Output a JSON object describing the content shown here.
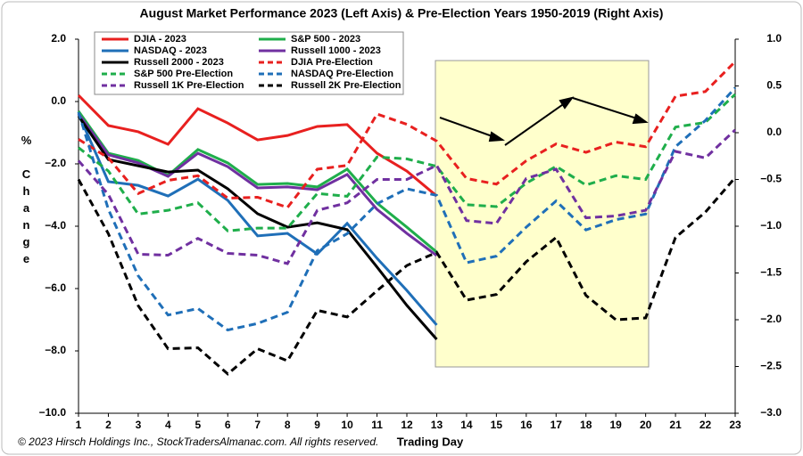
{
  "chart_data": {
    "type": "line",
    "title": "August Market Performance 2023 (Left Axis) & Pre-Election Years 1950-2019 (Right Axis)",
    "xlabel": "Trading Day",
    "ylabel": "% Change",
    "footnote": "© 2023 Hirsch Holdings Inc., StockTradersAlmanac.com. All rights reserved.",
    "x": [
      1,
      2,
      3,
      4,
      5,
      6,
      7,
      8,
      9,
      10,
      11,
      12,
      13,
      14,
      15,
      16,
      17,
      18,
      19,
      20,
      21,
      22,
      23
    ],
    "xlim": [
      1,
      23
    ],
    "xticks": [
      1,
      2,
      3,
      4,
      5,
      6,
      7,
      8,
      9,
      10,
      11,
      12,
      13,
      14,
      15,
      16,
      17,
      18,
      19,
      20,
      21,
      22,
      23
    ],
    "ylim": [
      -10,
      2
    ],
    "yticks": [
      {
        "value": 2,
        "label": "2.0"
      },
      {
        "value": 0,
        "label": "0.0"
      },
      {
        "value": -2,
        "label": "−2.0"
      },
      {
        "value": -4,
        "label": "−4.0"
      },
      {
        "value": -6,
        "label": "−6.0"
      },
      {
        "value": -8,
        "label": "−8.0"
      },
      {
        "value": -10,
        "label": "−10.0"
      }
    ],
    "y2lim": [
      -3,
      1
    ],
    "y2ticks": [
      {
        "value": 1,
        "label": "1.0"
      },
      {
        "value": 0.5,
        "label": "0.5"
      },
      {
        "value": 0,
        "label": "0.0"
      },
      {
        "value": -0.5,
        "label": "−0.5"
      },
      {
        "value": -1,
        "label": "−1.0"
      },
      {
        "value": -1.5,
        "label": "−1.5"
      },
      {
        "value": -2,
        "label": "−2.0"
      },
      {
        "value": -2.5,
        "label": "−2.5"
      },
      {
        "value": -3,
        "label": "−3.0"
      }
    ],
    "grid": false,
    "series": [
      {
        "name": "DJIA - 2023",
        "color": "#e8201f",
        "linestyle": "solid",
        "axis": "y",
        "values": [
          0.2,
          -0.77,
          -0.97,
          -1.37,
          -0.23,
          -0.69,
          -1.23,
          -1.09,
          -0.8,
          -0.74,
          -1.66,
          -2.23,
          -3.03,
          null,
          null,
          null,
          null,
          null,
          null,
          null,
          null,
          null,
          null
        ]
      },
      {
        "name": "S&P 500 - 2023",
        "color": "#1fae4b",
        "linestyle": "solid",
        "axis": "y",
        "values": [
          -0.31,
          -1.66,
          -1.89,
          -2.37,
          -1.54,
          -1.97,
          -2.66,
          -2.63,
          -2.74,
          -2.17,
          -3.26,
          -4.03,
          -4.83,
          null,
          null,
          null,
          null,
          null,
          null,
          null,
          null,
          null,
          null
        ]
      },
      {
        "name": "NASDAQ - 2023",
        "color": "#1f6fb8",
        "linestyle": "solid",
        "axis": "y",
        "values": [
          -0.4,
          -2.57,
          -2.69,
          -3.03,
          -2.49,
          -3.17,
          -4.31,
          -4.23,
          -4.89,
          -3.91,
          -5.03,
          -6.06,
          -7.17,
          null,
          null,
          null,
          null,
          null,
          null,
          null,
          null,
          null,
          null
        ]
      },
      {
        "name": "Russell 1000 - 2023",
        "color": "#7030a0",
        "linestyle": "solid",
        "axis": "y",
        "values": [
          -0.4,
          -1.71,
          -1.97,
          -2.4,
          -1.66,
          -2.09,
          -2.77,
          -2.74,
          -2.83,
          -2.34,
          -3.46,
          -4.23,
          -4.94,
          null,
          null,
          null,
          null,
          null,
          null,
          null,
          null,
          null,
          null
        ]
      },
      {
        "name": "Russell 2000 - 2023",
        "color": "#000000",
        "linestyle": "solid",
        "axis": "y",
        "values": [
          -0.46,
          -1.86,
          -2.06,
          -2.26,
          -2.2,
          -2.8,
          -3.6,
          -4.03,
          -3.89,
          -4.11,
          -5.31,
          -6.54,
          -7.63,
          null,
          null,
          null,
          null,
          null,
          null,
          null,
          null,
          null,
          null
        ]
      },
      {
        "name": "DJIA Pre-Election",
        "color": "#e8201f",
        "linestyle": "dashed",
        "axis": "y2",
        "values": [
          -0.07,
          -0.27,
          -0.65,
          -0.51,
          -0.46,
          -0.7,
          -0.69,
          -0.8,
          -0.39,
          -0.35,
          0.2,
          0.09,
          -0.09,
          -0.49,
          -0.55,
          -0.3,
          -0.12,
          -0.21,
          -0.1,
          -0.15,
          0.39,
          0.44,
          0.76
        ]
      },
      {
        "name": "S&P 500 Pre-Election",
        "color": "#1fae4b",
        "linestyle": "dashed",
        "axis": "y2",
        "values": [
          -0.16,
          -0.41,
          -0.87,
          -0.83,
          -0.75,
          -1.05,
          -1.02,
          -1.02,
          -0.65,
          -0.68,
          -0.26,
          -0.28,
          -0.36,
          -0.77,
          -0.79,
          -0.54,
          -0.36,
          -0.56,
          -0.46,
          -0.5,
          0.06,
          0.11,
          0.41
        ]
      },
      {
        "name": "NASDAQ Pre-Election",
        "color": "#1f6fb8",
        "linestyle": "dashed",
        "axis": "y2",
        "values": [
          0.22,
          -0.82,
          -1.53,
          -1.95,
          -1.88,
          -2.11,
          -2.04,
          -1.92,
          -1.26,
          -1.08,
          -0.76,
          -0.6,
          -0.67,
          -1.39,
          -1.32,
          -1.01,
          -0.73,
          -1.04,
          -0.93,
          -0.87,
          -0.15,
          0.13,
          0.48
        ]
      },
      {
        "name": "Russell 1K Pre-Election",
        "color": "#7030a0",
        "linestyle": "dashed",
        "axis": "y2",
        "values": [
          -0.3,
          -0.66,
          -1.3,
          -1.31,
          -1.13,
          -1.29,
          -1.31,
          -1.4,
          -0.83,
          -0.75,
          -0.5,
          -0.5,
          -0.35,
          -0.94,
          -0.97,
          -0.49,
          -0.39,
          -0.91,
          -0.89,
          -0.83,
          -0.2,
          -0.27,
          0.03
        ]
      },
      {
        "name": "Russell 2K Pre-Election",
        "color": "#000000",
        "linestyle": "dashed",
        "axis": "y2",
        "values": [
          -0.5,
          -1.08,
          -1.85,
          -2.31,
          -2.3,
          -2.58,
          -2.31,
          -2.44,
          -1.9,
          -1.97,
          -1.69,
          -1.42,
          -1.28,
          -1.79,
          -1.73,
          -1.38,
          -1.12,
          -1.74,
          -2.0,
          -1.98,
          -1.12,
          -0.85,
          -0.48
        ]
      }
    ]
  }
}
